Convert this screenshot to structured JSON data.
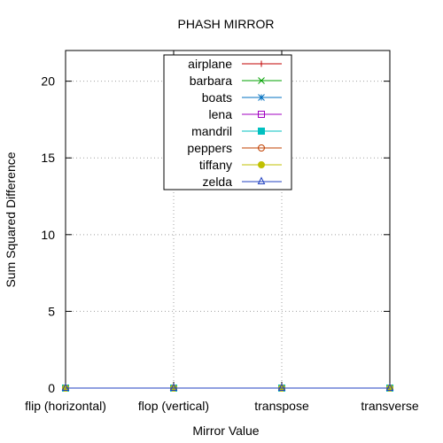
{
  "chart_data": {
    "type": "line",
    "title": "PHASH MIRROR",
    "xlabel": "Mirror Value",
    "ylabel": "Sum Squared Difference",
    "categories": [
      "flip (horizontal)",
      "flop (vertical)",
      "transpose",
      "transverse"
    ],
    "ylim": [
      0,
      22
    ],
    "yticks": [
      0,
      5,
      10,
      15,
      20
    ],
    "grid": true,
    "legend_position": "top-center",
    "series": [
      {
        "name": "airplane",
        "values": [
          0,
          0,
          0,
          0
        ],
        "color": "#c00000",
        "marker": "plus"
      },
      {
        "name": "barbara",
        "values": [
          0,
          0,
          0,
          0
        ],
        "color": "#00a000",
        "marker": "cross"
      },
      {
        "name": "boats",
        "values": [
          0,
          0,
          0,
          0
        ],
        "color": "#0070c0",
        "marker": "star"
      },
      {
        "name": "lena",
        "values": [
          0,
          0,
          0,
          0
        ],
        "color": "#a000c0",
        "marker": "square"
      },
      {
        "name": "mandril",
        "values": [
          0,
          0,
          0,
          0
        ],
        "color": "#00c0c0",
        "marker": "filled-square"
      },
      {
        "name": "peppers",
        "values": [
          0,
          0,
          0,
          0
        ],
        "color": "#c04000",
        "marker": "circle"
      },
      {
        "name": "tiffany",
        "values": [
          0,
          0,
          0,
          0
        ],
        "color": "#c0c000",
        "marker": "filled-circle"
      },
      {
        "name": "zelda",
        "values": [
          0,
          0,
          0,
          0
        ],
        "color": "#2040c0",
        "marker": "triangle"
      }
    ]
  }
}
